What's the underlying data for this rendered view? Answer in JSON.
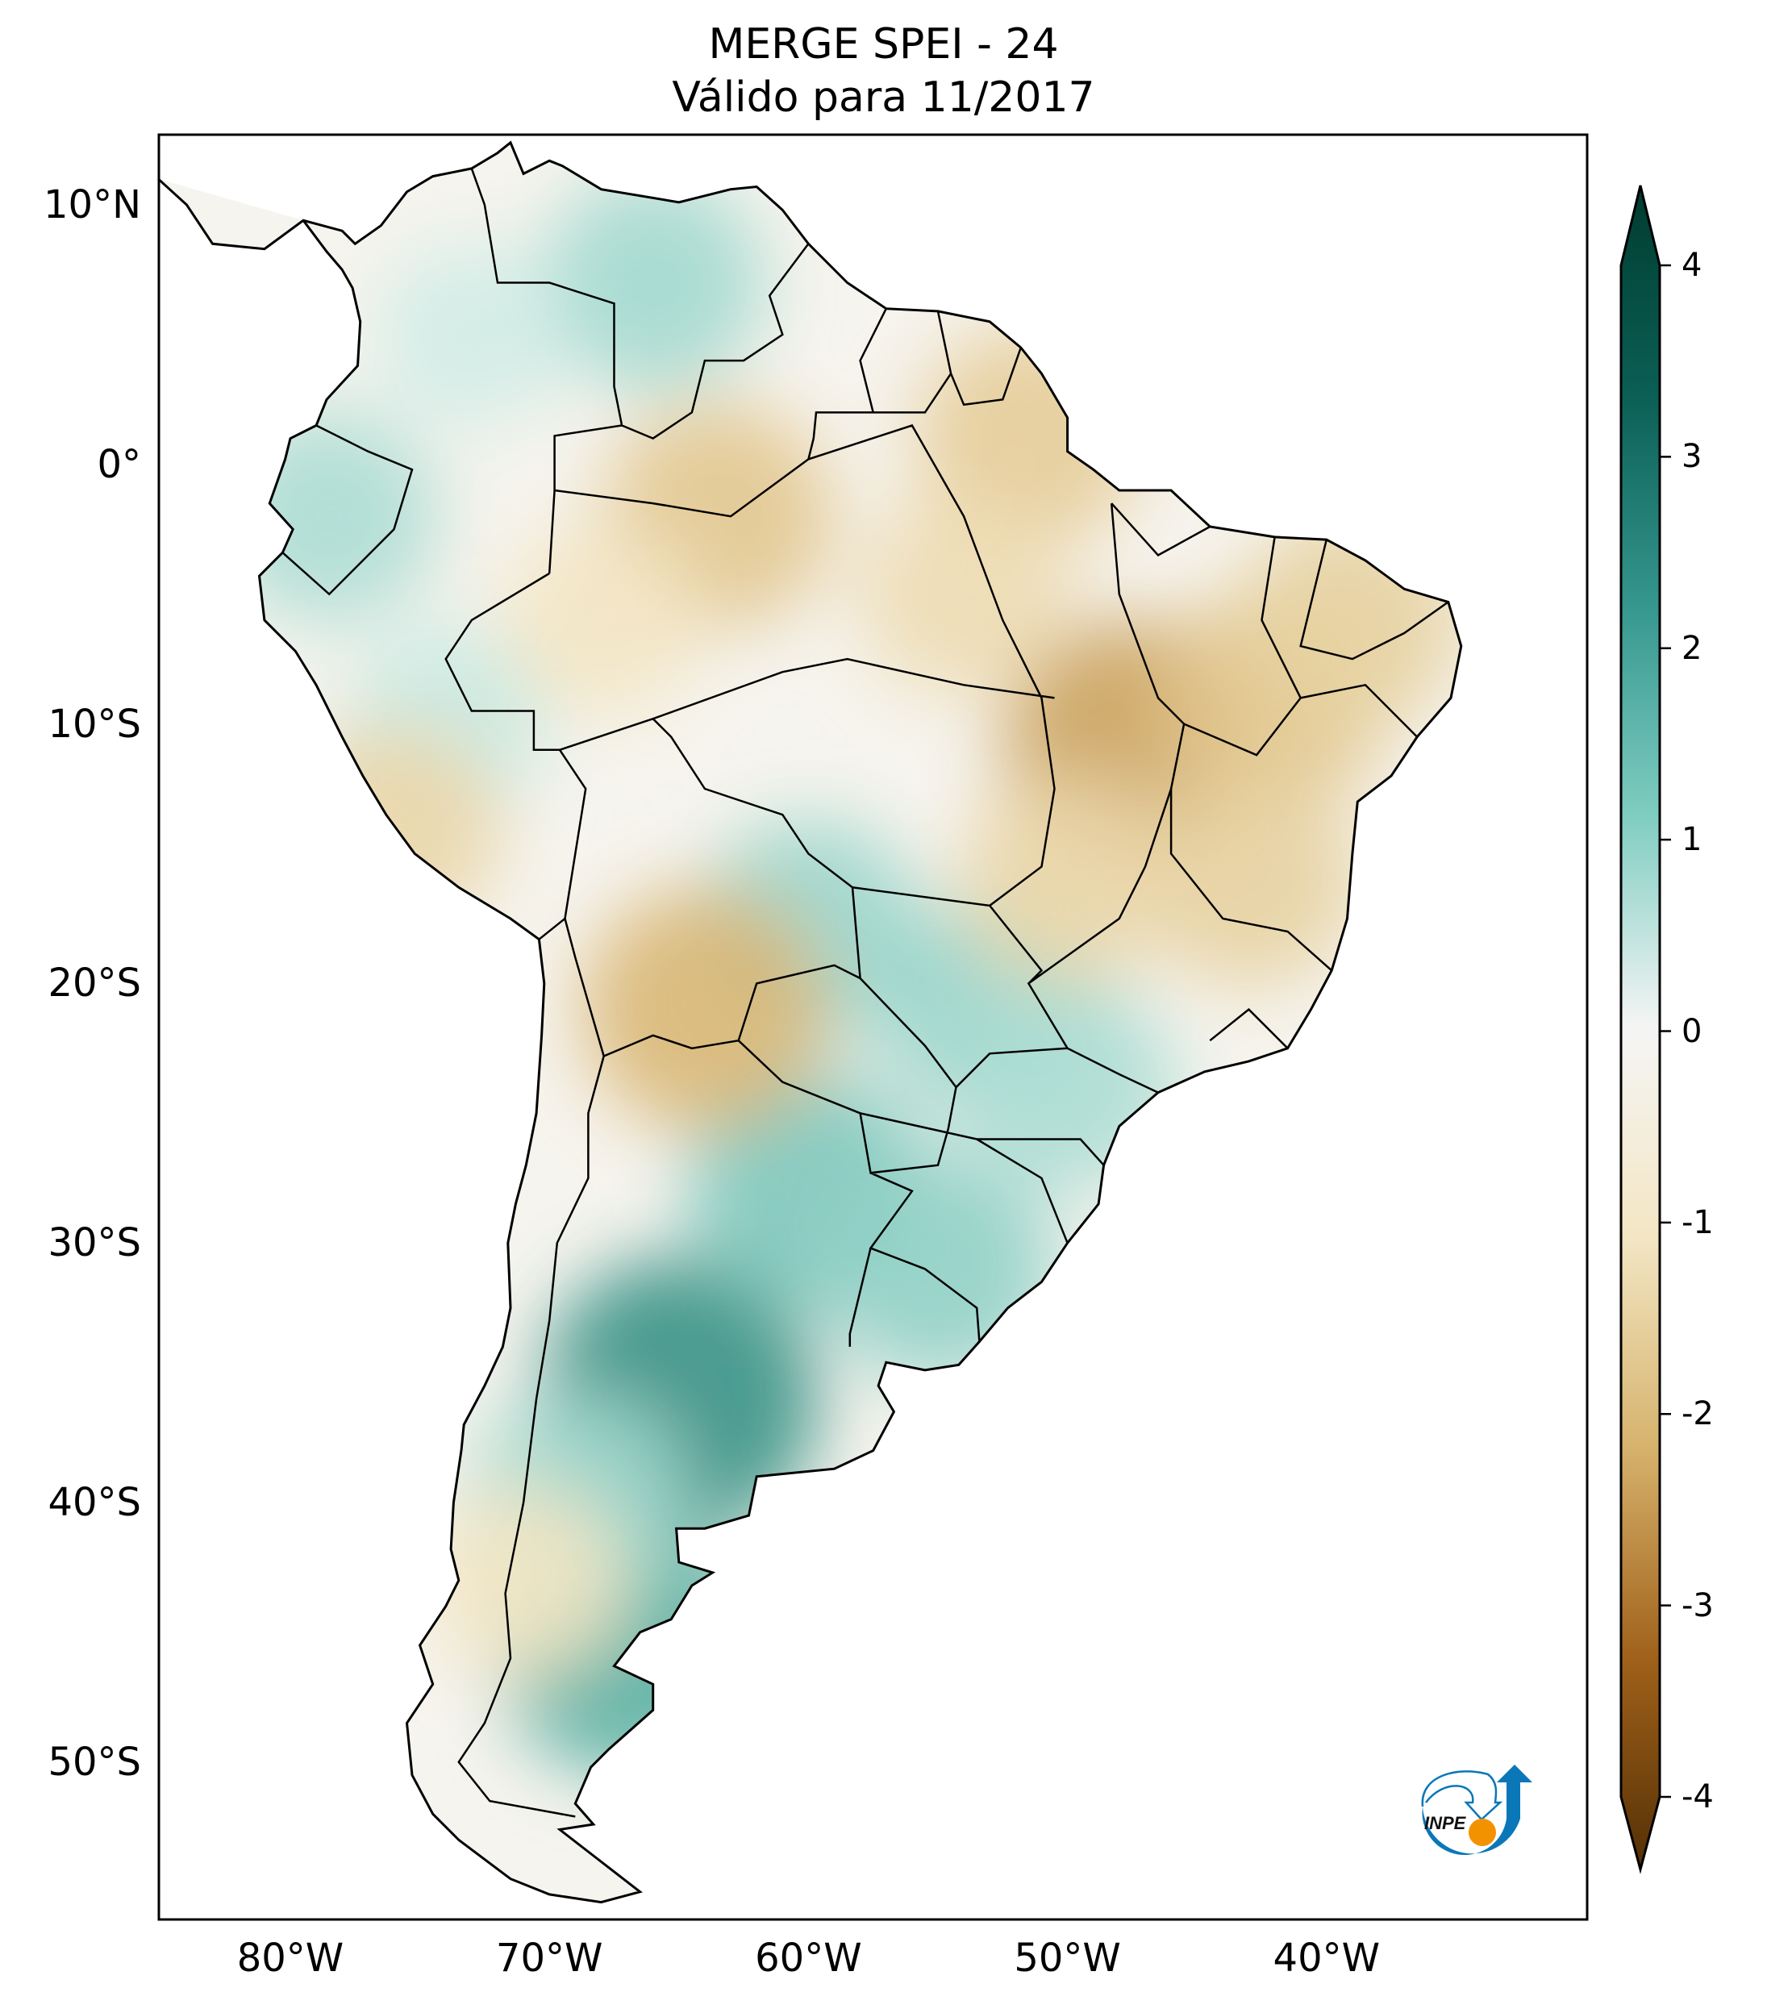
{
  "title": {
    "line1": "MERGE   SPEI - 24",
    "line2": "Válido para 11/2017"
  },
  "axes": {
    "lat_ticks": [
      {
        "value": 10,
        "label": "10°N"
      },
      {
        "value": 0,
        "label": "0°"
      },
      {
        "value": -10,
        "label": "10°S"
      },
      {
        "value": -20,
        "label": "20°S"
      },
      {
        "value": -30,
        "label": "30°S"
      },
      {
        "value": -40,
        "label": "40°S"
      },
      {
        "value": -50,
        "label": "50°S"
      }
    ],
    "lon_ticks": [
      {
        "value": -80,
        "label": "80°W"
      },
      {
        "value": -70,
        "label": "70°W"
      },
      {
        "value": -60,
        "label": "60°W"
      },
      {
        "value": -50,
        "label": "50°W"
      },
      {
        "value": -40,
        "label": "40°W"
      }
    ],
    "lon_range": [
      -85.1,
      -29.9
    ],
    "lat_range": [
      -56.1,
      12.7
    ]
  },
  "colorbar": {
    "ticks": [
      {
        "value": 4,
        "label": "4"
      },
      {
        "value": 3,
        "label": "3"
      },
      {
        "value": 2,
        "label": "2"
      },
      {
        "value": 1,
        "label": "1"
      },
      {
        "value": 0,
        "label": "0"
      },
      {
        "value": -1,
        "label": "-1"
      },
      {
        "value": -2,
        "label": "-2"
      },
      {
        "value": -3,
        "label": "-3"
      },
      {
        "value": -4,
        "label": "-4"
      }
    ],
    "range": [
      -4,
      4
    ],
    "colors": {
      "-4": "#543005",
      "-3": "#a0611a",
      "-2": "#d6b26c",
      "-1": "#f3e6c4",
      "0": "#f5f5f5",
      "1": "#c8eae3",
      "2": "#6cbfb2",
      "3": "#137469",
      "4": "#003c30"
    }
  },
  "logo": {
    "text": "INPE",
    "blue": "#0a77b8",
    "orange": "#f39200"
  },
  "anomalies": [
    {
      "lon": -66,
      "lat": 7,
      "value": 1.4
    },
    {
      "lon": -73,
      "lat": 5,
      "value": 0.8
    },
    {
      "lon": -78.5,
      "lat": -2,
      "value": 1.3
    },
    {
      "lon": -74,
      "lat": -10,
      "value": 1.0
    },
    {
      "lon": -65,
      "lat": -36,
      "value": 2.6
    },
    {
      "lon": -67,
      "lat": -45.5,
      "value": 2.2
    },
    {
      "lon": -60,
      "lat": -28,
      "value": 1.8
    },
    {
      "lon": -55,
      "lat": -31,
      "value": 1.6
    },
    {
      "lon": -53,
      "lat": -21,
      "value": 1.5
    },
    {
      "lon": -50,
      "lat": -24,
      "value": 1.3
    },
    {
      "lon": -69,
      "lat": -40,
      "value": 1.4
    },
    {
      "lon": -60,
      "lat": -18,
      "value": 1.5
    },
    {
      "lon": -47.5,
      "lat": -11,
      "value": -2.2
    },
    {
      "lon": -42,
      "lat": -9,
      "value": -1.6
    },
    {
      "lon": -63.5,
      "lat": -2,
      "value": -1.6
    },
    {
      "lon": -64,
      "lat": -21,
      "value": -1.9
    },
    {
      "lon": -51.5,
      "lat": 1,
      "value": -1.5
    },
    {
      "lon": -43,
      "lat": -16,
      "value": -1.4
    },
    {
      "lon": -50,
      "lat": -16,
      "value": -1.3
    },
    {
      "lon": -54,
      "lat": -5,
      "value": -1.2
    },
    {
      "lon": -76,
      "lat": -14,
      "value": -1.3
    },
    {
      "lon": -68,
      "lat": -6,
      "value": -1.0
    },
    {
      "lon": -39,
      "lat": -6,
      "value": -1.4
    },
    {
      "lon": -71,
      "lat": -43,
      "value": -1.0
    }
  ]
}
